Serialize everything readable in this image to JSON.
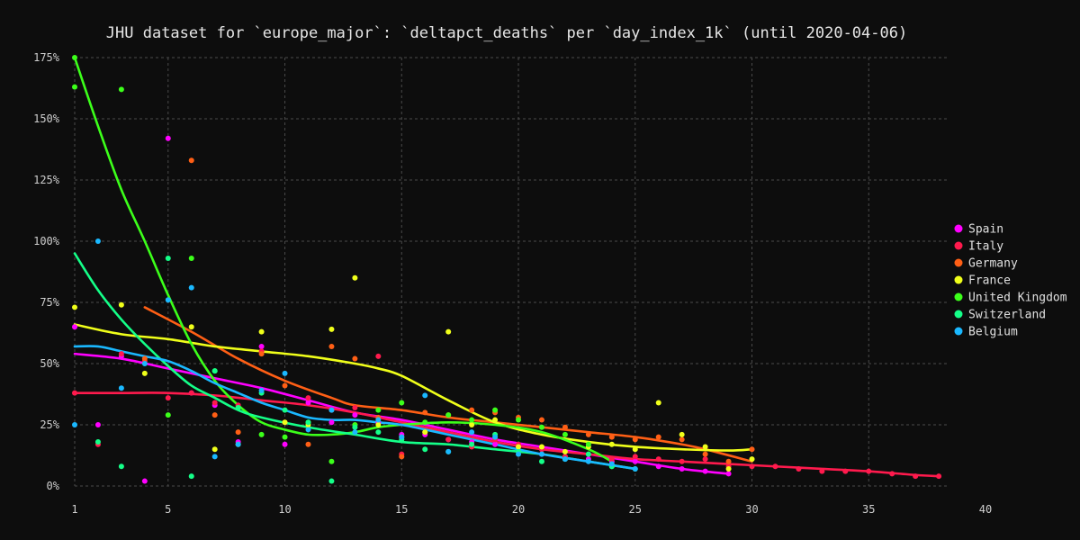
{
  "chart_data": {
    "type": "scatter",
    "title": "JHU dataset for `europe_major`: `deltapct_deaths` per `day_index_1k` (until 2020-04-06)",
    "xlabel": "",
    "ylabel": "",
    "xlim": [
      1,
      40
    ],
    "ylim": [
      0,
      1.75
    ],
    "x_ticks": [
      1,
      5,
      10,
      15,
      20,
      25,
      30,
      35,
      40
    ],
    "y_ticks": [
      0,
      0.25,
      0.5,
      0.75,
      1.0,
      1.25,
      1.5,
      1.75
    ],
    "y_tick_labels": [
      "0%",
      "25%",
      "50%",
      "75%",
      "100%",
      "125%",
      "150%",
      "175%"
    ],
    "x_tick_labels": [
      "1",
      "5",
      "10",
      "15",
      "20",
      "25",
      "30",
      "35",
      "40"
    ],
    "grid": true,
    "legend_position": "right",
    "series": [
      {
        "name": "Spain",
        "color": "#ff00ff",
        "points": [
          [
            1,
            0.65
          ],
          [
            2,
            0.25
          ],
          [
            3,
            0.53
          ],
          [
            4,
            0.02
          ],
          [
            5,
            1.42
          ],
          [
            6,
            0.38
          ],
          [
            7,
            0.33
          ],
          [
            8,
            0.18
          ],
          [
            9,
            0.57
          ],
          [
            10,
            0.17
          ],
          [
            11,
            0.34
          ],
          [
            12,
            0.26
          ],
          [
            13,
            0.29
          ],
          [
            14,
            0.26
          ],
          [
            15,
            0.21
          ],
          [
            16,
            0.21
          ],
          [
            17,
            0.19
          ],
          [
            18,
            0.18
          ],
          [
            19,
            0.17
          ],
          [
            20,
            0.16
          ],
          [
            21,
            0.13
          ],
          [
            22,
            0.12
          ],
          [
            23,
            0.11
          ],
          [
            24,
            0.1
          ],
          [
            25,
            0.1
          ],
          [
            26,
            0.08
          ],
          [
            27,
            0.07
          ],
          [
            28,
            0.06
          ],
          [
            29,
            0.05
          ]
        ],
        "trend": [
          [
            1,
            0.54
          ],
          [
            3,
            0.52
          ],
          [
            5,
            0.48
          ],
          [
            7,
            0.44
          ],
          [
            9,
            0.4
          ],
          [
            11,
            0.35
          ],
          [
            13,
            0.3
          ],
          [
            15,
            0.27
          ],
          [
            17,
            0.23
          ],
          [
            19,
            0.19
          ],
          [
            21,
            0.16
          ],
          [
            23,
            0.13
          ],
          [
            25,
            0.1
          ],
          [
            27,
            0.07
          ],
          [
            29,
            0.05
          ]
        ]
      },
      {
        "name": "Italy",
        "color": "#ff1a4d",
        "points": [
          [
            1,
            0.38
          ],
          [
            2,
            0.17
          ],
          [
            3,
            0.54
          ],
          [
            4,
            0.51
          ],
          [
            5,
            0.36
          ],
          [
            6,
            0.38
          ],
          [
            7,
            0.34
          ],
          [
            8,
            0.33
          ],
          [
            9,
            0.55
          ],
          [
            10,
            0.26
          ],
          [
            11,
            0.36
          ],
          [
            12,
            0.31
          ],
          [
            13,
            0.32
          ],
          [
            14,
            0.53
          ],
          [
            15,
            0.13
          ],
          [
            16,
            0.22
          ],
          [
            17,
            0.19
          ],
          [
            18,
            0.16
          ],
          [
            19,
            0.19
          ],
          [
            20,
            0.17
          ],
          [
            21,
            0.15
          ],
          [
            22,
            0.12
          ],
          [
            23,
            0.13
          ],
          [
            24,
            0.11
          ],
          [
            25,
            0.12
          ],
          [
            26,
            0.11
          ],
          [
            27,
            0.1
          ],
          [
            28,
            0.11
          ],
          [
            29,
            0.08
          ],
          [
            30,
            0.08
          ],
          [
            31,
            0.08
          ],
          [
            32,
            0.07
          ],
          [
            33,
            0.06
          ],
          [
            34,
            0.06
          ],
          [
            35,
            0.06
          ],
          [
            36,
            0.05
          ],
          [
            37,
            0.04
          ],
          [
            38,
            0.04
          ]
        ],
        "trend": [
          [
            1,
            0.38
          ],
          [
            3,
            0.38
          ],
          [
            5,
            0.38
          ],
          [
            7,
            0.37
          ],
          [
            9,
            0.35
          ],
          [
            11,
            0.33
          ],
          [
            13,
            0.3
          ],
          [
            15,
            0.26
          ],
          [
            17,
            0.22
          ],
          [
            19,
            0.18
          ],
          [
            21,
            0.15
          ],
          [
            23,
            0.13
          ],
          [
            25,
            0.11
          ],
          [
            27,
            0.1
          ],
          [
            29,
            0.09
          ],
          [
            31,
            0.08
          ],
          [
            33,
            0.07
          ],
          [
            35,
            0.06
          ],
          [
            37,
            0.045
          ],
          [
            38,
            0.04
          ]
        ]
      },
      {
        "name": "Germany",
        "color": "#ff5f15",
        "points": [
          [
            4,
            0.52
          ],
          [
            6,
            1.33
          ],
          [
            7,
            0.29
          ],
          [
            8,
            0.22
          ],
          [
            9,
            0.54
          ],
          [
            10,
            0.41
          ],
          [
            11,
            0.17
          ],
          [
            12,
            0.57
          ],
          [
            13,
            0.52
          ],
          [
            14,
            0.28
          ],
          [
            15,
            0.12
          ],
          [
            16,
            0.3
          ],
          [
            17,
            0.29
          ],
          [
            18,
            0.31
          ],
          [
            19,
            0.3
          ],
          [
            20,
            0.28
          ],
          [
            21,
            0.27
          ],
          [
            22,
            0.24
          ],
          [
            23,
            0.21
          ],
          [
            24,
            0.2
          ],
          [
            25,
            0.19
          ],
          [
            26,
            0.2
          ],
          [
            27,
            0.19
          ],
          [
            28,
            0.13
          ],
          [
            29,
            0.1
          ],
          [
            30,
            0.15
          ]
        ],
        "trend": [
          [
            4,
            0.73
          ],
          [
            6,
            0.63
          ],
          [
            8,
            0.52
          ],
          [
            10,
            0.43
          ],
          [
            12,
            0.36
          ],
          [
            13,
            0.33
          ],
          [
            15,
            0.31
          ],
          [
            17,
            0.28
          ],
          [
            19,
            0.26
          ],
          [
            21,
            0.24
          ],
          [
            23,
            0.22
          ],
          [
            25,
            0.2
          ],
          [
            27,
            0.17
          ],
          [
            28,
            0.15
          ],
          [
            30,
            0.1
          ]
        ]
      },
      {
        "name": "France",
        "color": "#f0ff1a",
        "points": [
          [
            1,
            0.73
          ],
          [
            3,
            0.74
          ],
          [
            4,
            0.46
          ],
          [
            6,
            0.65
          ],
          [
            7,
            0.15
          ],
          [
            8,
            0.17
          ],
          [
            9,
            0.63
          ],
          [
            10,
            0.26
          ],
          [
            11,
            0.25
          ],
          [
            12,
            0.64
          ],
          [
            13,
            0.85
          ],
          [
            14,
            0.25
          ],
          [
            15,
            0.2
          ],
          [
            16,
            0.22
          ],
          [
            17,
            0.63
          ],
          [
            18,
            0.25
          ],
          [
            19,
            0.27
          ],
          [
            20,
            0.16
          ],
          [
            21,
            0.16
          ],
          [
            22,
            0.14
          ],
          [
            23,
            0.16
          ],
          [
            24,
            0.17
          ],
          [
            25,
            0.15
          ],
          [
            26,
            0.34
          ],
          [
            27,
            0.21
          ],
          [
            28,
            0.16
          ],
          [
            29,
            0.07
          ],
          [
            30,
            0.11
          ]
        ],
        "trend": [
          [
            1,
            0.66
          ],
          [
            3,
            0.62
          ],
          [
            5,
            0.6
          ],
          [
            7,
            0.57
          ],
          [
            9,
            0.55
          ],
          [
            11,
            0.53
          ],
          [
            13,
            0.5
          ],
          [
            14,
            0.48
          ],
          [
            15,
            0.45
          ],
          [
            17,
            0.35
          ],
          [
            19,
            0.26
          ],
          [
            21,
            0.21
          ],
          [
            23,
            0.18
          ],
          [
            25,
            0.16
          ],
          [
            27,
            0.15
          ],
          [
            29,
            0.145
          ],
          [
            30,
            0.15
          ]
        ]
      },
      {
        "name": "United Kingdom",
        "color": "#3cff1a",
        "points": [
          [
            1,
            1.75
          ],
          [
            1,
            1.63
          ],
          [
            3,
            1.62
          ],
          [
            5,
            0.29
          ],
          [
            6,
            0.93
          ],
          [
            7,
            0.47
          ],
          [
            8,
            0.32
          ],
          [
            9,
            0.21
          ],
          [
            10,
            0.2
          ],
          [
            11,
            0.26
          ],
          [
            12,
            0.1
          ],
          [
            13,
            0.25
          ],
          [
            14,
            0.31
          ],
          [
            15,
            0.34
          ],
          [
            16,
            0.26
          ],
          [
            17,
            0.29
          ],
          [
            18,
            0.27
          ],
          [
            19,
            0.31
          ],
          [
            20,
            0.27
          ],
          [
            21,
            0.24
          ],
          [
            22,
            0.21
          ],
          [
            23,
            0.17
          ],
          [
            24,
            0.08
          ]
        ],
        "trend": [
          [
            1,
            1.75
          ],
          [
            2,
            1.47
          ],
          [
            3,
            1.21
          ],
          [
            4,
            1.0
          ],
          [
            5,
            0.78
          ],
          [
            6,
            0.58
          ],
          [
            7,
            0.43
          ],
          [
            8,
            0.33
          ],
          [
            9,
            0.26
          ],
          [
            10,
            0.23
          ],
          [
            11,
            0.21
          ],
          [
            12,
            0.21
          ],
          [
            13,
            0.22
          ],
          [
            14,
            0.24
          ],
          [
            15,
            0.25
          ],
          [
            17,
            0.26
          ],
          [
            19,
            0.25
          ],
          [
            21,
            0.22
          ],
          [
            23,
            0.15
          ],
          [
            24,
            0.1
          ]
        ]
      },
      {
        "name": "Switzerland",
        "color": "#14ff88",
        "points": [
          [
            2,
            0.18
          ],
          [
            3,
            0.08
          ],
          [
            5,
            0.93
          ],
          [
            6,
            0.04
          ],
          [
            7,
            0.47
          ],
          [
            8,
            0.32
          ],
          [
            9,
            0.38
          ],
          [
            10,
            0.31
          ],
          [
            11,
            0.26
          ],
          [
            12,
            0.02
          ],
          [
            13,
            0.24
          ],
          [
            14,
            0.22
          ],
          [
            15,
            0.19
          ],
          [
            16,
            0.15
          ],
          [
            17,
            0.14
          ],
          [
            18,
            0.17
          ],
          [
            19,
            0.21
          ],
          [
            20,
            0.14
          ],
          [
            21,
            0.1
          ],
          [
            22,
            0.11
          ],
          [
            23,
            0.13
          ],
          [
            24,
            0.08
          ],
          [
            25,
            0.07
          ]
        ],
        "trend": [
          [
            1,
            0.95
          ],
          [
            2,
            0.8
          ],
          [
            3,
            0.68
          ],
          [
            4,
            0.58
          ],
          [
            5,
            0.49
          ],
          [
            6,
            0.41
          ],
          [
            7,
            0.36
          ],
          [
            8,
            0.31
          ],
          [
            9,
            0.28
          ],
          [
            11,
            0.24
          ],
          [
            13,
            0.21
          ],
          [
            15,
            0.18
          ],
          [
            17,
            0.17
          ],
          [
            19,
            0.15
          ],
          [
            21,
            0.13
          ],
          [
            23,
            0.1
          ],
          [
            25,
            0.07
          ]
        ]
      },
      {
        "name": "Belgium",
        "color": "#1ab8ff",
        "points": [
          [
            1,
            0.25
          ],
          [
            2,
            1.0
          ],
          [
            3,
            0.4
          ],
          [
            4,
            0.5
          ],
          [
            5,
            0.76
          ],
          [
            6,
            0.81
          ],
          [
            7,
            0.12
          ],
          [
            8,
            0.17
          ],
          [
            9,
            0.39
          ],
          [
            10,
            0.46
          ],
          [
            11,
            0.23
          ],
          [
            12,
            0.31
          ],
          [
            13,
            0.22
          ],
          [
            14,
            0.27
          ],
          [
            15,
            0.2
          ],
          [
            16,
            0.37
          ],
          [
            17,
            0.14
          ],
          [
            18,
            0.22
          ],
          [
            19,
            0.2
          ],
          [
            20,
            0.13
          ],
          [
            21,
            0.13
          ],
          [
            22,
            0.11
          ],
          [
            23,
            0.1
          ],
          [
            24,
            0.09
          ],
          [
            25,
            0.07
          ]
        ],
        "trend": [
          [
            1,
            0.57
          ],
          [
            2,
            0.57
          ],
          [
            3,
            0.55
          ],
          [
            4,
            0.53
          ],
          [
            5,
            0.51
          ],
          [
            6,
            0.47
          ],
          [
            7,
            0.42
          ],
          [
            8,
            0.38
          ],
          [
            9,
            0.34
          ],
          [
            10,
            0.31
          ],
          [
            11,
            0.28
          ],
          [
            12,
            0.27
          ],
          [
            13,
            0.27
          ],
          [
            14,
            0.26
          ],
          [
            15,
            0.25
          ],
          [
            17,
            0.21
          ],
          [
            19,
            0.17
          ],
          [
            21,
            0.13
          ],
          [
            23,
            0.1
          ],
          [
            25,
            0.07
          ]
        ]
      }
    ]
  }
}
